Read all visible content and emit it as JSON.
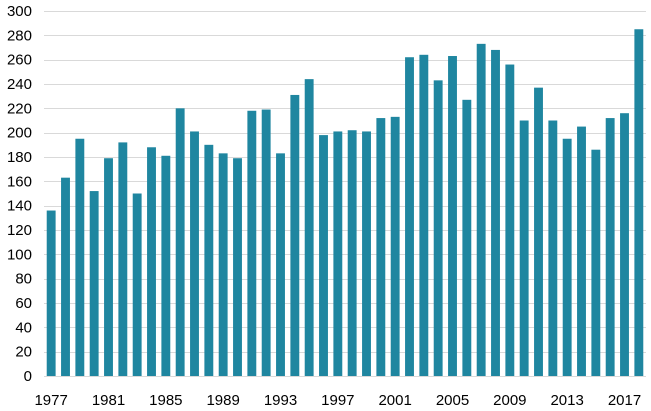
{
  "chart_data": {
    "type": "bar",
    "title": "",
    "xlabel": "",
    "ylabel": "",
    "ylim": [
      0,
      300
    ],
    "y_ticks": [
      0,
      20,
      40,
      60,
      80,
      100,
      120,
      140,
      160,
      180,
      200,
      220,
      240,
      260,
      280,
      300
    ],
    "x_tick_labels": [
      "1977",
      "1981",
      "1985",
      "1989",
      "1993",
      "1997",
      "2001",
      "2005",
      "2009",
      "2013",
      "2017"
    ],
    "grid": true,
    "legend": "none",
    "bar_color": "#1f86a0",
    "categories": [
      "1977",
      "1978",
      "1979",
      "1980",
      "1981",
      "1982",
      "1983",
      "1984",
      "1985",
      "1986",
      "1987",
      "1988",
      "1989",
      "1990",
      "1991",
      "1992",
      "1993",
      "1994",
      "1995",
      "1996",
      "1997",
      "1998",
      "1999",
      "2000",
      "2001",
      "2002",
      "2003",
      "2004",
      "2005",
      "2006",
      "2007",
      "2008",
      "2009",
      "2010",
      "2011",
      "2012",
      "2013",
      "2014",
      "2015",
      "2016",
      "2017",
      "2018"
    ],
    "values": [
      136,
      163,
      195,
      152,
      179,
      192,
      150,
      188,
      181,
      220,
      201,
      190,
      183,
      179,
      218,
      219,
      183,
      231,
      244,
      198,
      201,
      202,
      201,
      212,
      213,
      262,
      264,
      243,
      263,
      227,
      273,
      268,
      256,
      210,
      237,
      210,
      195,
      205,
      186,
      212,
      216,
      285
    ]
  }
}
